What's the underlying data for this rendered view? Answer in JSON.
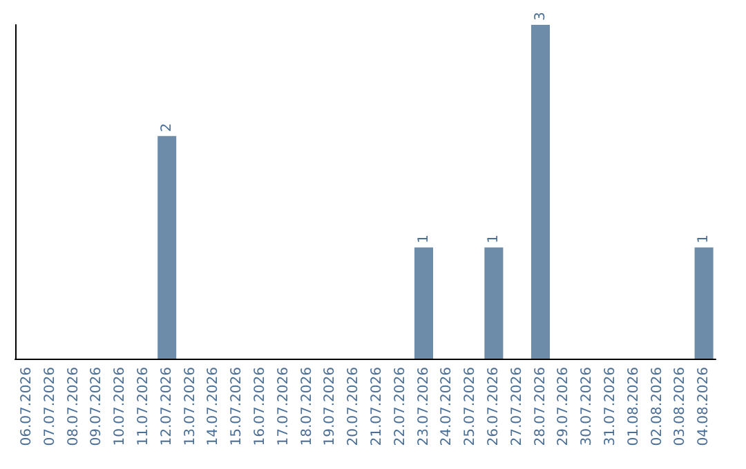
{
  "chart_data": {
    "type": "bar",
    "categories": [
      "06.07.2026",
      "07.07.2026",
      "08.07.2026",
      "09.07.2026",
      "10.07.2026",
      "11.07.2026",
      "12.07.2026",
      "13.07.2026",
      "14.07.2026",
      "15.07.2026",
      "16.07.2026",
      "17.07.2026",
      "18.07.2026",
      "19.07.2026",
      "20.07.2026",
      "21.07.2026",
      "22.07.2026",
      "23.07.2026",
      "24.07.2026",
      "25.07.2026",
      "26.07.2026",
      "27.07.2026",
      "28.07.2026",
      "29.07.2026",
      "30.07.2026",
      "31.07.2026",
      "01.08.2026",
      "02.08.2026",
      "03.08.2026",
      "04.08.2026"
    ],
    "values": [
      0,
      0,
      0,
      0,
      0,
      0,
      2,
      0,
      0,
      0,
      0,
      0,
      0,
      0,
      0,
      0,
      0,
      1,
      0,
      0,
      1,
      0,
      3,
      0,
      0,
      0,
      0,
      0,
      0,
      1
    ],
    "value_labels": [
      null,
      null,
      null,
      null,
      null,
      null,
      "2",
      null,
      null,
      null,
      null,
      null,
      null,
      null,
      null,
      null,
      null,
      "1",
      null,
      null,
      "1",
      null,
      "3",
      null,
      null,
      null,
      null,
      null,
      null,
      "1"
    ],
    "color": "#6d8caa",
    "grid": false,
    "tick_labels": "x"
  }
}
